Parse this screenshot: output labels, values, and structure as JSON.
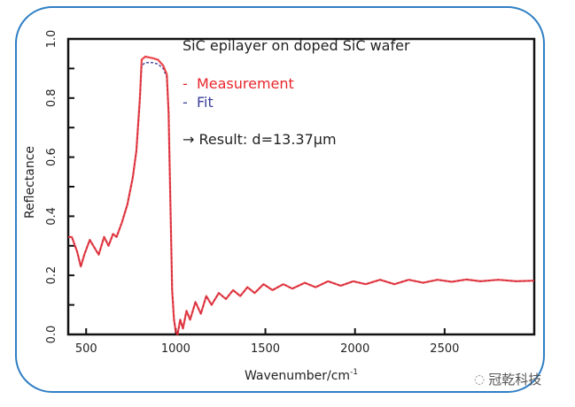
{
  "chart_data": {
    "type": "line",
    "title": "SiC epilayer on doped SiC wafer",
    "xlabel": "Wavenumber/cm",
    "xlabel_superscript": "-1",
    "ylabel": "Reflectance",
    "xlim": [
      400,
      3000
    ],
    "ylim": [
      0,
      1.0
    ],
    "x_ticks": [
      500,
      1000,
      1500,
      2000,
      2500
    ],
    "y_ticks": [
      0.0,
      0.2,
      0.4,
      0.6,
      0.8,
      1.0
    ],
    "y_tick_labels": [
      "0.0",
      "0.2",
      "0.4",
      "0.6",
      "0.8",
      "1.0"
    ],
    "x_tick_labels": [
      "500",
      "1000",
      "1500",
      "2000",
      "2500"
    ],
    "grid": false,
    "legend_placement": "top-center",
    "legend_marker": "-",
    "annotation": "→ Result: d=13.37μm",
    "x": [
      400,
      420,
      450,
      470,
      490,
      520,
      550,
      570,
      600,
      625,
      650,
      670,
      700,
      730,
      760,
      780,
      800,
      810,
      830,
      870,
      900,
      930,
      950,
      960,
      970,
      980,
      990,
      1000,
      1010,
      1025,
      1040,
      1060,
      1080,
      1110,
      1140,
      1170,
      1200,
      1240,
      1280,
      1320,
      1360,
      1400,
      1440,
      1490,
      1540,
      1600,
      1650,
      1720,
      1780,
      1850,
      1920,
      1990,
      2060,
      2140,
      2220,
      2300,
      2380,
      2460,
      2540,
      2620,
      2700,
      2800,
      2900,
      3000
    ],
    "series": [
      {
        "name": "Measurement",
        "color": "#e8262b",
        "values": [
          0.33,
          0.33,
          0.28,
          0.23,
          0.27,
          0.32,
          0.29,
          0.27,
          0.33,
          0.3,
          0.34,
          0.33,
          0.38,
          0.44,
          0.53,
          0.62,
          0.8,
          0.93,
          0.94,
          0.935,
          0.93,
          0.91,
          0.88,
          0.75,
          0.45,
          0.15,
          0.05,
          0.01,
          0.0,
          0.05,
          0.02,
          0.08,
          0.05,
          0.11,
          0.07,
          0.13,
          0.1,
          0.14,
          0.12,
          0.15,
          0.13,
          0.16,
          0.14,
          0.17,
          0.15,
          0.17,
          0.155,
          0.175,
          0.16,
          0.18,
          0.165,
          0.18,
          0.17,
          0.185,
          0.17,
          0.185,
          0.175,
          0.185,
          0.178,
          0.186,
          0.18,
          0.185,
          0.18,
          0.182
        ]
      },
      {
        "name": "Fit",
        "color": "#3b3f9a",
        "values": [
          0.33,
          0.33,
          0.28,
          0.23,
          0.27,
          0.32,
          0.29,
          0.27,
          0.33,
          0.3,
          0.34,
          0.33,
          0.38,
          0.44,
          0.53,
          0.62,
          0.79,
          0.91,
          0.92,
          0.92,
          0.915,
          0.9,
          0.87,
          0.75,
          0.45,
          0.15,
          0.05,
          0.01,
          0.0,
          0.05,
          0.02,
          0.08,
          0.05,
          0.11,
          0.07,
          0.13,
          0.1,
          0.14,
          0.12,
          0.15,
          0.13,
          0.16,
          0.14,
          0.17,
          0.15,
          0.17,
          0.155,
          0.175,
          0.16,
          0.18,
          0.165,
          0.18,
          0.17,
          0.185,
          0.17,
          0.185,
          0.175,
          0.185,
          0.178,
          0.186,
          0.18,
          0.185,
          0.18,
          0.182
        ]
      }
    ]
  },
  "watermark": {
    "text": "冠乾科技",
    "icon": "wechat-icon"
  }
}
